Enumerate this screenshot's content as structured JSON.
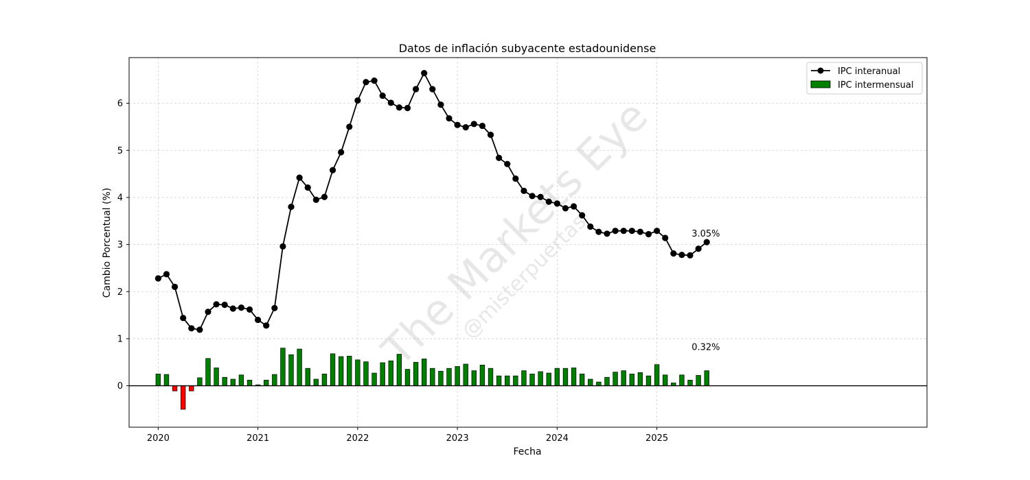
{
  "watermark": {
    "main": "The Markets Eye",
    "sub": "@misterpuertas"
  },
  "chart_data": {
    "type": "line+bar",
    "title": "Datos de inflación subyacente estadounidense",
    "xlabel": "Fecha",
    "ylabel": "Cambio Porcentual (%)",
    "x_tick_labels": [
      "2020",
      "2021",
      "2022",
      "2023",
      "2024",
      "2025"
    ],
    "y_tick_labels": [
      "0",
      "1",
      "2",
      "3",
      "4",
      "5",
      "6"
    ],
    "ylim": [
      -0.88,
      6.97
    ],
    "xlim_months": [
      -3.5,
      92.5
    ],
    "grid": true,
    "legend_position": "top-right",
    "colors": {
      "line": "#000000",
      "bar_positive": "#008000",
      "bar_negative": "#ff0000",
      "zero_line": "#000000"
    },
    "x_start": "2020-01",
    "x_step": "1 month",
    "series": [
      {
        "name": "IPC interanual",
        "kind": "line",
        "values": [
          2.28,
          2.37,
          2.1,
          1.44,
          1.22,
          1.19,
          1.57,
          1.73,
          1.72,
          1.64,
          1.66,
          1.62,
          1.4,
          1.28,
          1.65,
          2.96,
          3.8,
          4.42,
          4.21,
          3.95,
          4.01,
          4.58,
          4.96,
          5.5,
          6.06,
          6.45,
          6.48,
          6.16,
          6.01,
          5.91,
          5.9,
          6.3,
          6.64,
          6.3,
          5.97,
          5.68,
          5.54,
          5.49,
          5.56,
          5.52,
          5.33,
          4.84,
          4.71,
          4.4,
          4.14,
          4.03,
          4.01,
          3.91,
          3.87,
          3.77,
          3.81,
          3.62,
          3.38,
          3.27,
          3.23,
          3.29,
          3.29,
          3.29,
          3.27,
          3.22,
          3.29,
          3.14,
          2.81,
          2.78,
          2.77,
          2.91,
          3.05
        ]
      },
      {
        "name": "IPC intermensual",
        "kind": "bar",
        "values": [
          0.25,
          0.24,
          -0.11,
          -0.5,
          -0.11,
          0.17,
          0.58,
          0.38,
          0.18,
          0.14,
          0.23,
          0.12,
          0.02,
          0.12,
          0.24,
          0.8,
          0.66,
          0.78,
          0.37,
          0.14,
          0.25,
          0.68,
          0.62,
          0.63,
          0.55,
          0.51,
          0.27,
          0.49,
          0.53,
          0.67,
          0.35,
          0.5,
          0.57,
          0.37,
          0.31,
          0.37,
          0.41,
          0.46,
          0.32,
          0.44,
          0.37,
          0.21,
          0.21,
          0.21,
          0.32,
          0.25,
          0.3,
          0.27,
          0.37,
          0.37,
          0.38,
          0.25,
          0.14,
          0.08,
          0.18,
          0.29,
          0.32,
          0.25,
          0.28,
          0.21,
          0.45,
          0.23,
          0.06,
          0.23,
          0.12,
          0.22,
          0.32
        ]
      }
    ],
    "annotations": [
      {
        "text": "3.05%",
        "target": "last-line-point"
      },
      {
        "text": "0.32%",
        "target": "last-bar"
      }
    ]
  }
}
